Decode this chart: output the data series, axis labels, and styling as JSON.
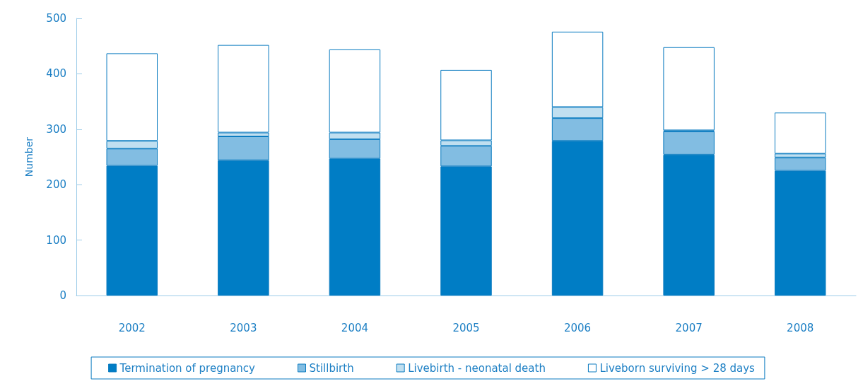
{
  "chart_data": {
    "type": "bar",
    "stacked": true,
    "ylabel": "Number",
    "categories": [
      "2002",
      "2003",
      "2004",
      "2005",
      "2006",
      "2007",
      "2008"
    ],
    "series": [
      {
        "name": "Termination of pregnancy",
        "color": "#007dc5",
        "values": [
          234,
          244,
          247,
          233,
          279,
          254,
          225
        ]
      },
      {
        "name": "Stillbirth",
        "color": "#82bde2",
        "values": [
          31,
          43,
          35,
          37,
          41,
          42,
          24
        ]
      },
      {
        "name": "Livebirth - neonatal death",
        "color": "#c0dff0",
        "values": [
          14,
          7,
          12,
          10,
          20,
          2,
          7
        ]
      },
      {
        "name": "Liveborn surviving > 28 days",
        "color": "#ffffff",
        "values": [
          158,
          158,
          150,
          127,
          136,
          150,
          74
        ]
      }
    ],
    "ylim": [
      0,
      500
    ],
    "yticks": [
      0,
      100,
      200,
      300,
      400,
      500
    ],
    "grid": false,
    "legend": "bottom"
  }
}
